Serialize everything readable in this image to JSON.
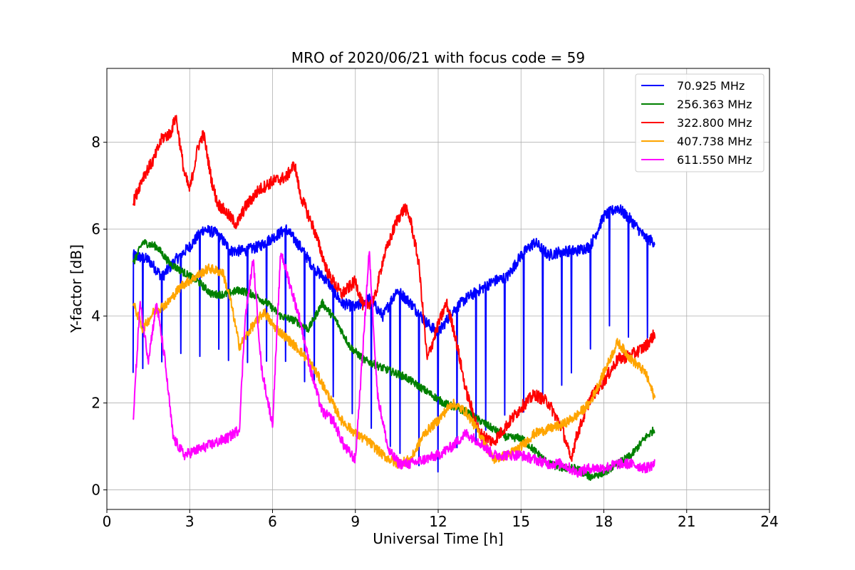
{
  "chart_data": {
    "type": "line",
    "title": "MRO of 2020/06/21 with focus code = 59",
    "xlabel": "Universal Time [h]",
    "ylabel": "Y-factor [dB]",
    "xlim": [
      0,
      24
    ],
    "ylim": [
      -0.45,
      9.7
    ],
    "xticks": [
      0,
      3,
      6,
      9,
      12,
      15,
      18,
      21,
      24
    ],
    "yticks": [
      0,
      2,
      4,
      6,
      8
    ],
    "grid": true,
    "legend_position": "top-right",
    "series": [
      {
        "name": " 70.925 MHz",
        "color": "#0000ff",
        "x_start": 0.95,
        "x_end": 19.85,
        "baseline": [
          [
            0.95,
            5.4
          ],
          [
            1.5,
            5.3
          ],
          [
            2.0,
            4.9
          ],
          [
            2.5,
            5.3
          ],
          [
            3.0,
            5.6
          ],
          [
            3.5,
            6.0
          ],
          [
            4.0,
            5.9
          ],
          [
            4.5,
            5.5
          ],
          [
            5.0,
            5.5
          ],
          [
            5.5,
            5.6
          ],
          [
            6.0,
            5.8
          ],
          [
            6.5,
            6.0
          ],
          [
            7.0,
            5.6
          ],
          [
            7.5,
            5.1
          ],
          [
            8.0,
            4.8
          ],
          [
            8.5,
            4.3
          ],
          [
            9.0,
            4.2
          ],
          [
            9.5,
            4.4
          ],
          [
            10.0,
            4.0
          ],
          [
            10.5,
            4.6
          ],
          [
            11.0,
            4.3
          ],
          [
            11.5,
            3.9
          ],
          [
            12.0,
            3.6
          ],
          [
            12.5,
            4.1
          ],
          [
            13.0,
            4.4
          ],
          [
            13.5,
            4.6
          ],
          [
            14.0,
            4.8
          ],
          [
            14.5,
            4.9
          ],
          [
            15.0,
            5.4
          ],
          [
            15.5,
            5.7
          ],
          [
            16.0,
            5.4
          ],
          [
            16.5,
            5.5
          ],
          [
            17.0,
            5.5
          ],
          [
            17.5,
            5.6
          ],
          [
            18.0,
            6.3
          ],
          [
            18.5,
            6.5
          ],
          [
            19.0,
            6.2
          ],
          [
            19.5,
            5.8
          ],
          [
            19.85,
            5.7
          ]
        ],
        "dip_interval_h": 0.345,
        "dip_floor": [
          [
            0.95,
            2.6
          ],
          [
            3.0,
            3.0
          ],
          [
            6.0,
            2.9
          ],
          [
            9.0,
            1.6
          ],
          [
            11.0,
            0.6
          ],
          [
            12.0,
            0.4
          ],
          [
            14.0,
            1.3
          ],
          [
            16.0,
            2.0
          ],
          [
            18.0,
            3.5
          ],
          [
            19.85,
            3.3
          ]
        ]
      },
      {
        "name": "256.363 MHz",
        "color": "#008000",
        "x_start": 0.95,
        "x_end": 19.85,
        "baseline": [
          [
            0.95,
            5.2
          ],
          [
            1.3,
            5.7
          ],
          [
            1.8,
            5.6
          ],
          [
            2.3,
            5.2
          ],
          [
            2.8,
            5.0
          ],
          [
            3.3,
            4.8
          ],
          [
            3.8,
            4.5
          ],
          [
            4.3,
            4.5
          ],
          [
            4.8,
            4.6
          ],
          [
            5.3,
            4.5
          ],
          [
            5.8,
            4.3
          ],
          [
            6.3,
            4.0
          ],
          [
            6.8,
            3.9
          ],
          [
            7.3,
            3.7
          ],
          [
            7.8,
            4.3
          ],
          [
            8.3,
            3.9
          ],
          [
            8.8,
            3.3
          ],
          [
            9.3,
            3.0
          ],
          [
            10.0,
            2.8
          ],
          [
            10.8,
            2.6
          ],
          [
            11.5,
            2.3
          ],
          [
            12.2,
            2.0
          ],
          [
            13.0,
            1.8
          ],
          [
            13.5,
            1.6
          ],
          [
            14.0,
            1.4
          ],
          [
            14.5,
            1.2
          ],
          [
            15.0,
            1.2
          ],
          [
            15.5,
            0.9
          ],
          [
            16.0,
            0.6
          ],
          [
            16.5,
            0.5
          ],
          [
            17.0,
            0.5
          ],
          [
            17.5,
            0.3
          ],
          [
            18.0,
            0.4
          ],
          [
            18.5,
            0.6
          ],
          [
            19.0,
            0.8
          ],
          [
            19.5,
            1.2
          ],
          [
            19.85,
            1.4
          ]
        ]
      },
      {
        "name": "322.800 MHz",
        "color": "#ff0000",
        "x_start": 0.95,
        "x_end": 19.85,
        "baseline": [
          [
            0.95,
            6.6
          ],
          [
            1.3,
            7.2
          ],
          [
            1.7,
            7.6
          ],
          [
            2.0,
            8.1
          ],
          [
            2.3,
            8.2
          ],
          [
            2.5,
            8.6
          ],
          [
            2.8,
            7.3
          ],
          [
            3.0,
            6.9
          ],
          [
            3.3,
            7.9
          ],
          [
            3.5,
            8.2
          ],
          [
            3.8,
            7.1
          ],
          [
            4.0,
            6.6
          ],
          [
            4.3,
            6.4
          ],
          [
            4.7,
            6.1
          ],
          [
            5.0,
            6.5
          ],
          [
            5.5,
            6.9
          ],
          [
            6.0,
            7.1
          ],
          [
            6.5,
            7.2
          ],
          [
            6.8,
            7.5
          ],
          [
            7.0,
            6.8
          ],
          [
            7.5,
            6.0
          ],
          [
            8.0,
            5.0
          ],
          [
            8.5,
            4.5
          ],
          [
            9.0,
            4.8
          ],
          [
            9.3,
            4.2
          ],
          [
            9.7,
            4.4
          ],
          [
            10.0,
            5.3
          ],
          [
            10.5,
            6.2
          ],
          [
            10.8,
            6.5
          ],
          [
            11.0,
            6.2
          ],
          [
            11.3,
            5.2
          ],
          [
            11.6,
            3.0
          ],
          [
            12.0,
            3.8
          ],
          [
            12.3,
            4.3
          ],
          [
            12.6,
            3.6
          ],
          [
            13.0,
            2.3
          ],
          [
            13.5,
            1.3
          ],
          [
            14.0,
            1.1
          ],
          [
            14.5,
            1.5
          ],
          [
            15.0,
            1.9
          ],
          [
            15.5,
            2.2
          ],
          [
            16.0,
            2.0
          ],
          [
            16.5,
            1.4
          ],
          [
            16.8,
            0.7
          ],
          [
            17.0,
            1.2
          ],
          [
            17.5,
            2.1
          ],
          [
            18.0,
            2.5
          ],
          [
            18.5,
            3.0
          ],
          [
            19.0,
            3.1
          ],
          [
            19.5,
            3.3
          ],
          [
            19.85,
            3.6
          ]
        ]
      },
      {
        "name": "407.738 MHz",
        "color": "#ffa500",
        "x_start": 0.95,
        "x_end": 19.85,
        "baseline": [
          [
            0.95,
            4.3
          ],
          [
            1.3,
            3.7
          ],
          [
            1.7,
            4.1
          ],
          [
            2.2,
            4.3
          ],
          [
            2.7,
            4.7
          ],
          [
            3.2,
            4.9
          ],
          [
            3.7,
            5.1
          ],
          [
            4.2,
            5.0
          ],
          [
            4.5,
            4.3
          ],
          [
            4.8,
            3.3
          ],
          [
            5.2,
            3.7
          ],
          [
            5.7,
            4.1
          ],
          [
            6.0,
            3.8
          ],
          [
            6.5,
            3.5
          ],
          [
            7.0,
            3.2
          ],
          [
            7.5,
            2.8
          ],
          [
            8.0,
            2.2
          ],
          [
            8.5,
            1.6
          ],
          [
            9.0,
            1.3
          ],
          [
            9.5,
            1.1
          ],
          [
            10.0,
            0.8
          ],
          [
            10.5,
            0.6
          ],
          [
            11.0,
            0.7
          ],
          [
            11.5,
            1.3
          ],
          [
            12.0,
            1.6
          ],
          [
            12.5,
            2.0
          ],
          [
            13.0,
            1.8
          ],
          [
            13.5,
            1.3
          ],
          [
            14.0,
            0.7
          ],
          [
            14.5,
            0.8
          ],
          [
            15.0,
            1.0
          ],
          [
            15.5,
            1.3
          ],
          [
            16.0,
            1.4
          ],
          [
            16.5,
            1.5
          ],
          [
            17.0,
            1.7
          ],
          [
            17.5,
            2.0
          ],
          [
            18.0,
            2.7
          ],
          [
            18.5,
            3.4
          ],
          [
            19.0,
            3.0
          ],
          [
            19.5,
            2.7
          ],
          [
            19.85,
            2.1
          ]
        ]
      },
      {
        "name": "611.550 MHz",
        "color": "#ff00ff",
        "x_start": 0.95,
        "x_end": 19.85,
        "baseline": [
          [
            0.95,
            1.6
          ],
          [
            1.2,
            4.3
          ],
          [
            1.5,
            3.0
          ],
          [
            1.8,
            4.3
          ],
          [
            2.1,
            3.0
          ],
          [
            2.4,
            1.2
          ],
          [
            2.8,
            0.8
          ],
          [
            3.2,
            0.9
          ],
          [
            3.6,
            1.0
          ],
          [
            4.0,
            1.1
          ],
          [
            4.4,
            1.2
          ],
          [
            4.8,
            1.4
          ],
          [
            5.0,
            3.9
          ],
          [
            5.3,
            5.3
          ],
          [
            5.6,
            2.8
          ],
          [
            6.0,
            1.5
          ],
          [
            6.3,
            5.5
          ],
          [
            6.6,
            4.8
          ],
          [
            7.0,
            3.9
          ],
          [
            7.4,
            2.7
          ],
          [
            7.8,
            1.8
          ],
          [
            8.2,
            1.6
          ],
          [
            8.6,
            1.0
          ],
          [
            9.0,
            0.7
          ],
          [
            9.3,
            3.5
          ],
          [
            9.5,
            5.5
          ],
          [
            9.8,
            2.2
          ],
          [
            10.2,
            0.9
          ],
          [
            10.6,
            0.6
          ],
          [
            11.0,
            0.6
          ],
          [
            11.5,
            0.7
          ],
          [
            12.0,
            0.8
          ],
          [
            12.5,
            1.0
          ],
          [
            13.0,
            1.3
          ],
          [
            13.5,
            1.1
          ],
          [
            14.0,
            0.8
          ],
          [
            14.5,
            0.8
          ],
          [
            15.0,
            0.8
          ],
          [
            15.5,
            0.7
          ],
          [
            16.0,
            0.6
          ],
          [
            16.5,
            0.6
          ],
          [
            17.0,
            0.4
          ],
          [
            17.5,
            0.5
          ],
          [
            18.0,
            0.5
          ],
          [
            18.5,
            0.6
          ],
          [
            19.0,
            0.6
          ],
          [
            19.5,
            0.5
          ],
          [
            19.85,
            0.6
          ]
        ]
      }
    ]
  }
}
